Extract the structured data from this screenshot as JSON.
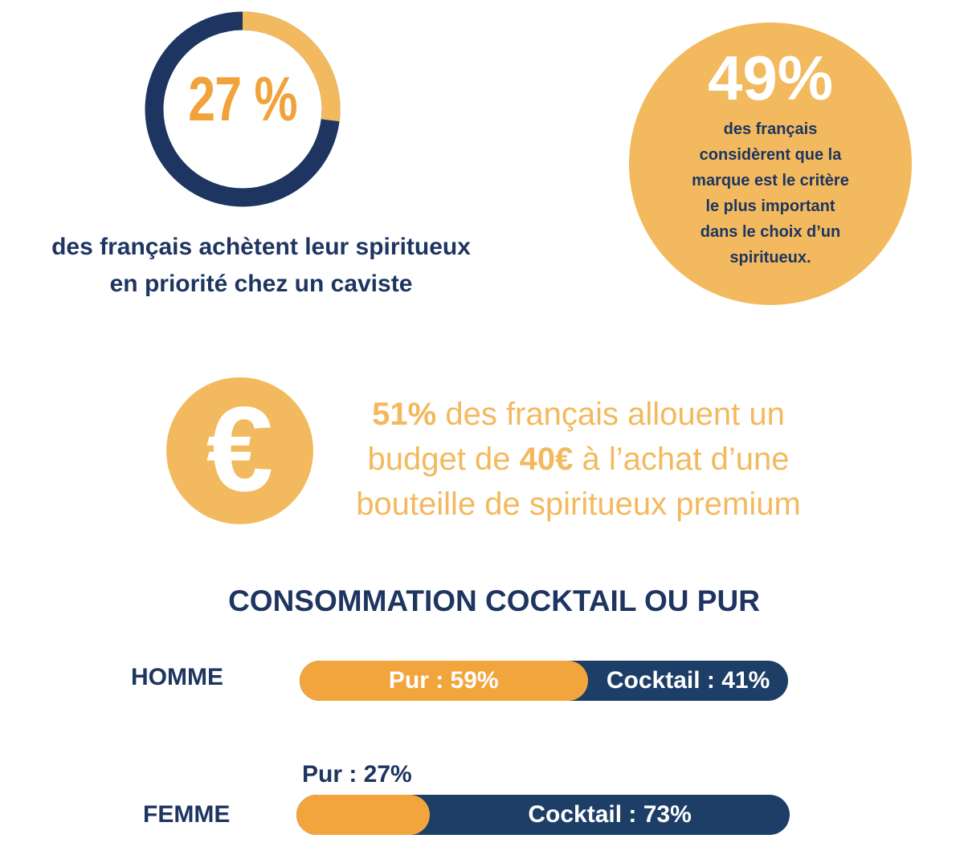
{
  "donut_stat": {
    "value": 27,
    "label": "27 %",
    "caption_line1": "des français achètent leur spiritueux",
    "caption_line2": "en priorité chez un caviste",
    "colors": {
      "highlight": "#f3b95e",
      "rest": "#1d3560"
    }
  },
  "brand_stat": {
    "value_label": "49%",
    "text_lines": [
      "des français",
      "considèrent que la",
      "marque est le critère",
      "le plus important",
      "dans le choix d’un",
      "spiritueux."
    ],
    "circle_color": "#f3b95e"
  },
  "budget_stat": {
    "icon": "euro-icon",
    "symbol": "€",
    "pct": "51%",
    "text1": " des français allouent un",
    "text2_pre": "budget de ",
    "amount": "40€",
    "text2_post": " à l’achat d’une",
    "text3": "bouteille de spiritueux premium"
  },
  "chart_data": {
    "type": "bar",
    "orientation": "horizontal",
    "stacked": true,
    "title": "CONSOMMATION COCKTAIL OU PUR",
    "categories": [
      "HOMME",
      "FEMME"
    ],
    "series": [
      {
        "name": "Pur",
        "values": [
          59,
          27
        ],
        "labels": [
          "Pur : 59%",
          "Pur : 27%"
        ],
        "color": "#f2a53d"
      },
      {
        "name": "Cocktail",
        "values": [
          41,
          73
        ],
        "labels": [
          "Cocktail : 41%",
          "Cocktail : 73%"
        ],
        "color": "#1d3e66"
      }
    ],
    "xlim": [
      0,
      100
    ]
  }
}
